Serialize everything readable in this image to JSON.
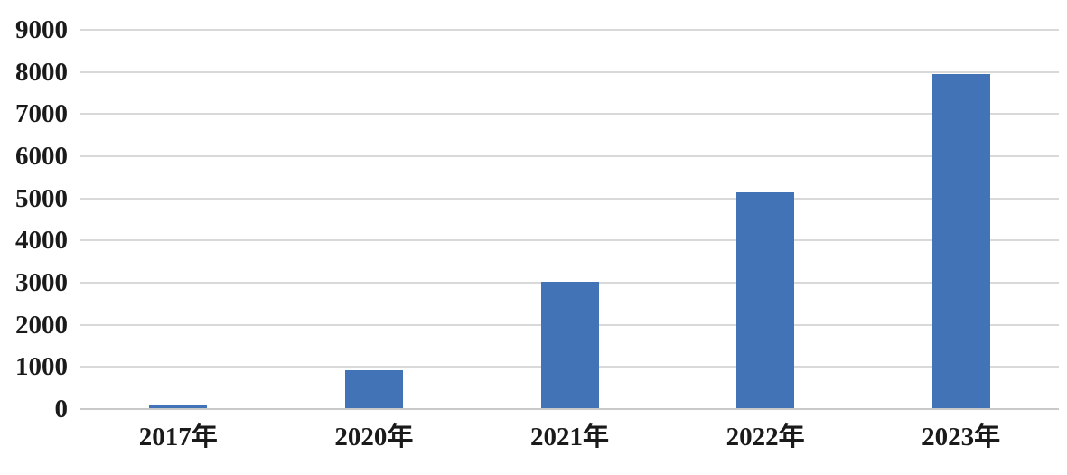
{
  "chart": {
    "background_color": "#FFFFFF",
    "bar_color": "#4273B7",
    "gridline_color": "#D9D9D9",
    "baseline_color": "#C9C9C9",
    "text_color": "#1A1A1A"
  },
  "chart_data": {
    "type": "bar",
    "title": "",
    "categories": [
      "2017年",
      "2020年",
      "2021年",
      "2022年",
      "2023年"
    ],
    "values": [
      100,
      920,
      3020,
      5150,
      7950
    ],
    "xlabel": "",
    "ylabel": "",
    "ylim": [
      0,
      9000
    ],
    "y_ticks": [
      "0",
      "1000",
      "2000",
      "3000",
      "4000",
      "5000",
      "6000",
      "7000",
      "8000",
      "9000"
    ],
    "y_tick_values": [
      0,
      1000,
      2000,
      3000,
      4000,
      5000,
      6000,
      7000,
      8000,
      9000
    ],
    "grid": "horizontal",
    "legend": "none"
  }
}
